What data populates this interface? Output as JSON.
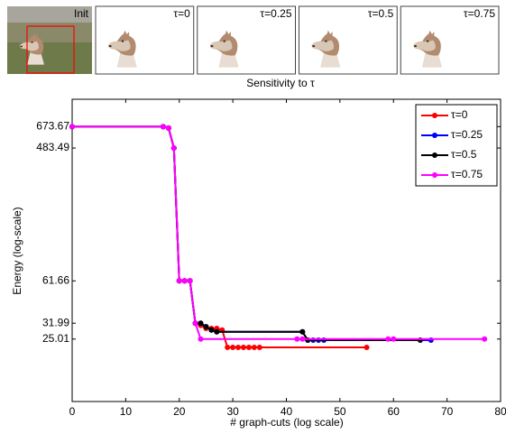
{
  "panels": {
    "labels": [
      "Init",
      "τ=0",
      "τ=0.25",
      "τ=0.5",
      "τ=0.75"
    ]
  },
  "chart_data": {
    "type": "line",
    "title": "Sensitivity to τ",
    "x_label": "# graph-cuts (log scale)",
    "y_label": "Energy (log-scale)",
    "log_y": true,
    "legend": "top-right",
    "xlim": [
      0,
      80
    ],
    "xticks": [
      0,
      10,
      20,
      30,
      40,
      50,
      60,
      70,
      80
    ],
    "ylim": [
      9.5,
      1030
    ],
    "yticks": [
      25.01,
      31.99,
      61.66,
      483.49,
      673.67
    ],
    "series": [
      {
        "name": "τ=0",
        "color": "#ff0000",
        "x": [
          0,
          17,
          18,
          19,
          20,
          21,
          22,
          23,
          24,
          25,
          26,
          27,
          28,
          29,
          30,
          31,
          32,
          33,
          34,
          35,
          55
        ],
        "values": [
          673.67,
          673.67,
          660,
          483.49,
          61.66,
          61.66,
          61.66,
          31.99,
          30.9,
          29.5,
          29.5,
          29.5,
          28.8,
          22,
          22,
          22,
          22,
          22,
          22,
          22,
          22
        ]
      },
      {
        "name": "τ=0.25",
        "color": "#0000ff",
        "x": [
          0,
          17,
          18,
          19,
          20,
          21,
          22,
          23,
          24,
          25,
          26,
          27,
          43,
          44,
          45,
          46,
          47,
          67
        ],
        "values": [
          673.67,
          673.67,
          660,
          483.49,
          61.66,
          61.66,
          61.66,
          31.99,
          31.99,
          30.3,
          28.8,
          28,
          28,
          24.6,
          24.6,
          24.6,
          24.6,
          24.6
        ]
      },
      {
        "name": "τ=0.5",
        "color": "#000000",
        "x": [
          0,
          17,
          18,
          19,
          20,
          21,
          22,
          23,
          24,
          25,
          26,
          27,
          43,
          44,
          65
        ],
        "values": [
          673.67,
          673.67,
          660,
          483.49,
          61.66,
          61.66,
          61.66,
          31.99,
          31.99,
          30.3,
          28.8,
          28,
          28,
          24.6,
          24.6
        ]
      },
      {
        "name": "τ=0.75",
        "color": "#ff00ff",
        "x": [
          0,
          17,
          18,
          19,
          20,
          21,
          22,
          23,
          24,
          42,
          43,
          59,
          60,
          77
        ],
        "values": [
          673.67,
          673.67,
          660,
          483.49,
          61.66,
          61.66,
          61.66,
          31.99,
          25.01,
          25.01,
          25.01,
          25.01,
          25.01,
          25.01
        ]
      }
    ]
  }
}
